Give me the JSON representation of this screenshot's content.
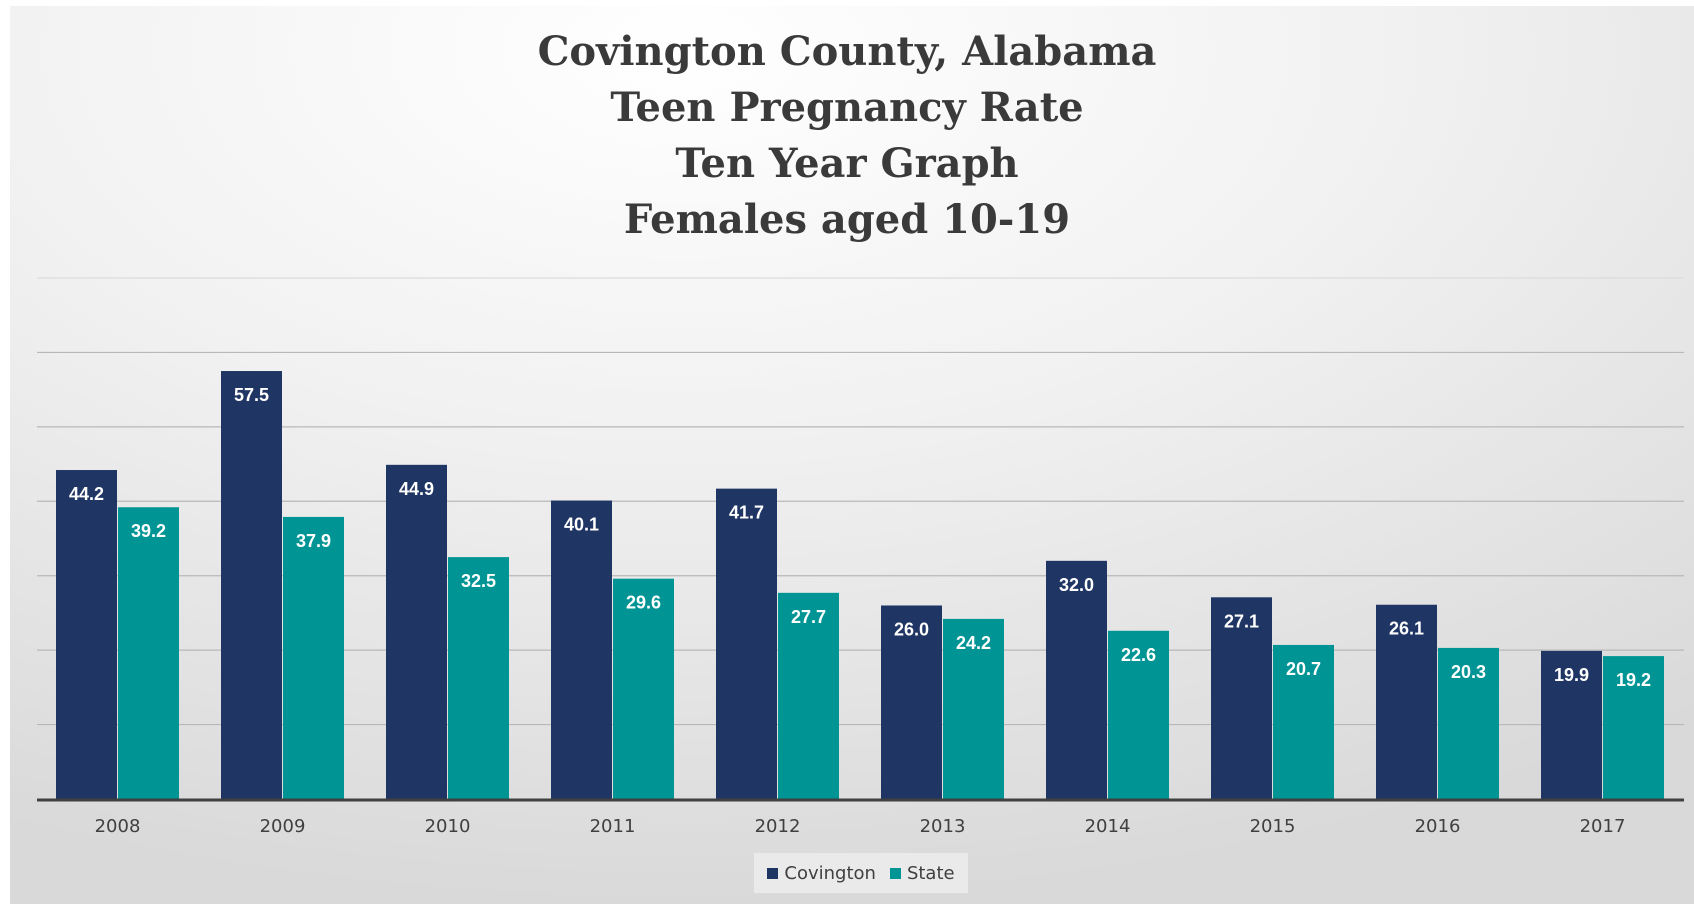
{
  "colors": {
    "covington": "#1f3563",
    "state": "#009594",
    "grid": "#b8b8b8",
    "axis": "#404040"
  },
  "chart_data": {
    "type": "bar",
    "title": [
      "Covington County, Alabama",
      "Teen Pregnancy Rate",
      "Ten Year Graph",
      "Females aged 10-19"
    ],
    "categories": [
      "2008",
      "2009",
      "2010",
      "2011",
      "2012",
      "2013",
      "2014",
      "2015",
      "2016",
      "2017"
    ],
    "series": [
      {
        "name": "Covington",
        "values": [
          44.2,
          57.5,
          44.9,
          40.1,
          41.7,
          26.0,
          32.0,
          27.1,
          26.1,
          19.9
        ]
      },
      {
        "name": "State",
        "values": [
          39.2,
          37.9,
          32.5,
          29.6,
          27.7,
          24.2,
          22.6,
          20.7,
          20.3,
          19.2
        ]
      }
    ],
    "data_labels": [
      [
        "44.2",
        "57.5",
        "44.9",
        "40.1",
        "41.7",
        "26.0",
        "32.0",
        "27.1",
        "26.1",
        "19.9"
      ],
      [
        "39.2",
        "37.9",
        "32.5",
        "29.6",
        "27.7",
        "24.2",
        "22.6",
        "20.7",
        "20.3",
        "19.2"
      ]
    ],
    "ylim": [
      0,
      70
    ],
    "y_grid_step": 10,
    "grid": true,
    "y_axis_labels_shown": false,
    "legend_position": "bottom"
  }
}
